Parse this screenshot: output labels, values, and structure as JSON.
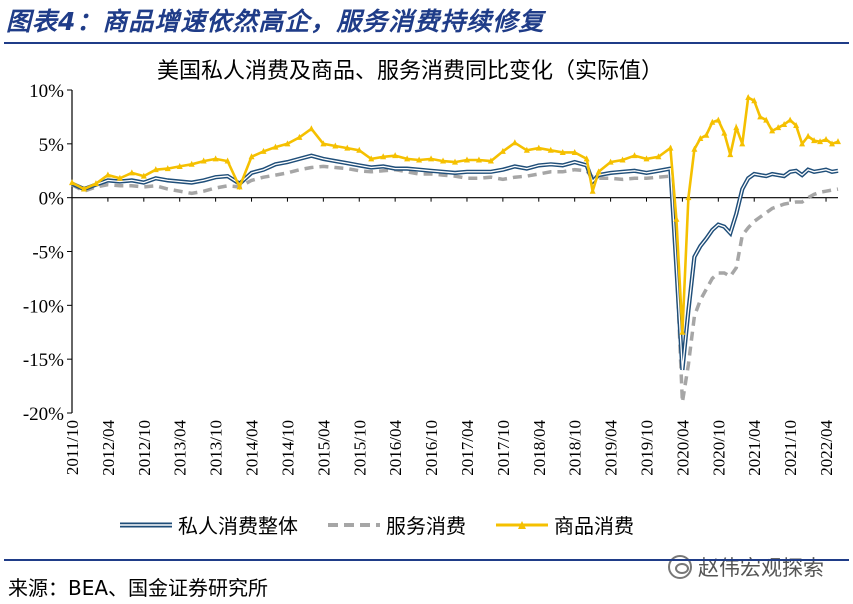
{
  "figure": {
    "caption": "图表4：商品增速依然高企，服务消费持续修复",
    "source": "来源：BEA、国金证券研究所",
    "watermark": "赵伟宏观探索"
  },
  "colors": {
    "title": "#1f3c88",
    "total": "#1f4e79",
    "services": "#a6a6a6",
    "goods": "#f5c000"
  },
  "chart_data": {
    "type": "line",
    "title": "美国私人消费及商品、服务消费同比变化（实际值）",
    "xlabel": "",
    "ylabel": "",
    "ylim": [
      -20,
      10
    ],
    "yticks": [
      "10%",
      "5%",
      "0%",
      "-5%",
      "-10%",
      "-15%",
      "-20%"
    ],
    "ytick_values": [
      10,
      5,
      0,
      -5,
      -10,
      -15,
      -20
    ],
    "xticks": [
      "2011/10",
      "2012/04",
      "2012/10",
      "2013/04",
      "2013/10",
      "2014/04",
      "2014/10",
      "2015/04",
      "2015/10",
      "2016/04",
      "2016/10",
      "2017/04",
      "2017/10",
      "2018/04",
      "2018/10",
      "2019/04",
      "2019/10",
      "2020/04",
      "2020/10",
      "2021/04",
      "2021/10",
      "2022/04"
    ],
    "x_start": "2011/10",
    "x_end": "2022/06",
    "grid": false,
    "legend_position": "bottom",
    "series": [
      {
        "name": "私人消费整体",
        "style": "double-line",
        "points": [
          [
            "2011/10",
            1.3
          ],
          [
            "2011/12",
            0.8
          ],
          [
            "2012/02",
            1.2
          ],
          [
            "2012/04",
            1.6
          ],
          [
            "2012/06",
            1.5
          ],
          [
            "2012/08",
            1.6
          ],
          [
            "2012/10",
            1.4
          ],
          [
            "2012/12",
            1.8
          ],
          [
            "2013/02",
            1.6
          ],
          [
            "2013/04",
            1.5
          ],
          [
            "2013/06",
            1.4
          ],
          [
            "2013/08",
            1.6
          ],
          [
            "2013/10",
            1.9
          ],
          [
            "2013/12",
            2.0
          ],
          [
            "2014/02",
            1.3
          ],
          [
            "2014/04",
            2.3
          ],
          [
            "2014/06",
            2.6
          ],
          [
            "2014/08",
            3.1
          ],
          [
            "2014/10",
            3.3
          ],
          [
            "2014/12",
            3.6
          ],
          [
            "2015/02",
            3.9
          ],
          [
            "2015/04",
            3.6
          ],
          [
            "2015/06",
            3.4
          ],
          [
            "2015/08",
            3.2
          ],
          [
            "2015/10",
            3.0
          ],
          [
            "2015/12",
            2.8
          ],
          [
            "2016/02",
            2.9
          ],
          [
            "2016/04",
            2.7
          ],
          [
            "2016/06",
            2.7
          ],
          [
            "2016/08",
            2.6
          ],
          [
            "2016/10",
            2.5
          ],
          [
            "2016/12",
            2.4
          ],
          [
            "2017/02",
            2.3
          ],
          [
            "2017/04",
            2.4
          ],
          [
            "2017/06",
            2.4
          ],
          [
            "2017/08",
            2.4
          ],
          [
            "2017/10",
            2.6
          ],
          [
            "2017/12",
            2.9
          ],
          [
            "2018/02",
            2.7
          ],
          [
            "2018/04",
            3.0
          ],
          [
            "2018/06",
            3.1
          ],
          [
            "2018/08",
            3.0
          ],
          [
            "2018/10",
            3.3
          ],
          [
            "2018/12",
            3.0
          ],
          [
            "2019/01",
            1.5
          ],
          [
            "2019/02",
            2.1
          ],
          [
            "2019/04",
            2.3
          ],
          [
            "2019/06",
            2.4
          ],
          [
            "2019/08",
            2.5
          ],
          [
            "2019/10",
            2.3
          ],
          [
            "2019/12",
            2.5
          ],
          [
            "2020/02",
            2.7
          ],
          [
            "2020/03",
            -6.5
          ],
          [
            "2020/04",
            -16.0
          ],
          [
            "2020/05",
            -10.5
          ],
          [
            "2020/06",
            -5.5
          ],
          [
            "2020/07",
            -4.5
          ],
          [
            "2020/08",
            -3.8
          ],
          [
            "2020/09",
            -3.0
          ],
          [
            "2020/10",
            -2.5
          ],
          [
            "2020/11",
            -2.7
          ],
          [
            "2020/12",
            -3.3
          ],
          [
            "2021/01",
            -1.5
          ],
          [
            "2021/02",
            0.8
          ],
          [
            "2021/03",
            1.8
          ],
          [
            "2021/04",
            2.2
          ],
          [
            "2021/05",
            2.1
          ],
          [
            "2021/06",
            2.0
          ],
          [
            "2021/07",
            2.2
          ],
          [
            "2021/08",
            2.1
          ],
          [
            "2021/09",
            2.0
          ],
          [
            "2021/10",
            2.4
          ],
          [
            "2021/11",
            2.5
          ],
          [
            "2021/12",
            2.1
          ],
          [
            "2022/01",
            2.6
          ],
          [
            "2022/02",
            2.4
          ],
          [
            "2022/03",
            2.5
          ],
          [
            "2022/04",
            2.6
          ],
          [
            "2022/05",
            2.4
          ],
          [
            "2022/06",
            2.5
          ]
        ]
      },
      {
        "name": "服务消费",
        "style": "dashed",
        "points": [
          [
            "2011/10",
            1.2
          ],
          [
            "2011/12",
            0.6
          ],
          [
            "2012/02",
            1.0
          ],
          [
            "2012/04",
            1.2
          ],
          [
            "2012/06",
            1.1
          ],
          [
            "2012/08",
            1.1
          ],
          [
            "2012/10",
            1.0
          ],
          [
            "2012/12",
            1.1
          ],
          [
            "2013/02",
            0.8
          ],
          [
            "2013/04",
            0.6
          ],
          [
            "2013/06",
            0.4
          ],
          [
            "2013/08",
            0.6
          ],
          [
            "2013/10",
            0.9
          ],
          [
            "2013/12",
            1.1
          ],
          [
            "2014/02",
            1.0
          ],
          [
            "2014/04",
            1.6
          ],
          [
            "2014/06",
            1.9
          ],
          [
            "2014/08",
            2.1
          ],
          [
            "2014/10",
            2.3
          ],
          [
            "2014/12",
            2.6
          ],
          [
            "2015/02",
            2.8
          ],
          [
            "2015/04",
            2.9
          ],
          [
            "2015/06",
            2.8
          ],
          [
            "2015/08",
            2.7
          ],
          [
            "2015/10",
            2.5
          ],
          [
            "2015/12",
            2.4
          ],
          [
            "2016/02",
            2.5
          ],
          [
            "2016/04",
            2.6
          ],
          [
            "2016/06",
            2.4
          ],
          [
            "2016/08",
            2.2
          ],
          [
            "2016/10",
            2.2
          ],
          [
            "2016/12",
            2.1
          ],
          [
            "2017/02",
            2.0
          ],
          [
            "2017/04",
            1.8
          ],
          [
            "2017/06",
            1.8
          ],
          [
            "2017/08",
            1.9
          ],
          [
            "2017/10",
            1.7
          ],
          [
            "2017/12",
            1.9
          ],
          [
            "2018/02",
            2.0
          ],
          [
            "2018/04",
            2.2
          ],
          [
            "2018/06",
            2.4
          ],
          [
            "2018/08",
            2.4
          ],
          [
            "2018/10",
            2.6
          ],
          [
            "2018/12",
            2.5
          ],
          [
            "2019/01",
            1.9
          ],
          [
            "2019/02",
            1.8
          ],
          [
            "2019/04",
            1.8
          ],
          [
            "2019/06",
            1.7
          ],
          [
            "2019/08",
            1.8
          ],
          [
            "2019/10",
            1.8
          ],
          [
            "2019/12",
            1.9
          ],
          [
            "2020/02",
            2.0
          ],
          [
            "2020/03",
            -6.0
          ],
          [
            "2020/04",
            -19.0
          ],
          [
            "2020/05",
            -15.5
          ],
          [
            "2020/06",
            -11.0
          ],
          [
            "2020/07",
            -9.5
          ],
          [
            "2020/08",
            -8.5
          ],
          [
            "2020/09",
            -7.5
          ],
          [
            "2020/10",
            -7.0
          ],
          [
            "2020/11",
            -7.0
          ],
          [
            "2020/12",
            -7.3
          ],
          [
            "2021/01",
            -6.5
          ],
          [
            "2021/02",
            -3.5
          ],
          [
            "2021/03",
            -2.8
          ],
          [
            "2021/04",
            -2.2
          ],
          [
            "2021/05",
            -1.8
          ],
          [
            "2021/06",
            -1.4
          ],
          [
            "2021/07",
            -1.0
          ],
          [
            "2021/08",
            -0.8
          ],
          [
            "2021/09",
            -0.6
          ],
          [
            "2021/10",
            -0.5
          ],
          [
            "2021/11",
            -0.4
          ],
          [
            "2021/12",
            -0.4
          ],
          [
            "2022/01",
            0.0
          ],
          [
            "2022/02",
            0.3
          ],
          [
            "2022/03",
            0.5
          ],
          [
            "2022/04",
            0.6
          ],
          [
            "2022/05",
            0.7
          ],
          [
            "2022/06",
            0.8
          ]
        ]
      },
      {
        "name": "商品消费",
        "style": "line-triangle",
        "points": [
          [
            "2011/10",
            1.4
          ],
          [
            "2011/12",
            0.8
          ],
          [
            "2012/02",
            1.3
          ],
          [
            "2012/04",
            2.1
          ],
          [
            "2012/06",
            1.8
          ],
          [
            "2012/08",
            2.3
          ],
          [
            "2012/10",
            2.0
          ],
          [
            "2012/12",
            2.6
          ],
          [
            "2013/02",
            2.7
          ],
          [
            "2013/04",
            2.9
          ],
          [
            "2013/06",
            3.1
          ],
          [
            "2013/08",
            3.4
          ],
          [
            "2013/10",
            3.6
          ],
          [
            "2013/12",
            3.4
          ],
          [
            "2014/02",
            1.0
          ],
          [
            "2014/04",
            3.8
          ],
          [
            "2014/06",
            4.3
          ],
          [
            "2014/08",
            4.7
          ],
          [
            "2014/10",
            5.0
          ],
          [
            "2014/12",
            5.6
          ],
          [
            "2015/02",
            6.4
          ],
          [
            "2015/04",
            5.0
          ],
          [
            "2015/06",
            4.8
          ],
          [
            "2015/08",
            4.6
          ],
          [
            "2015/10",
            4.4
          ],
          [
            "2015/12",
            3.6
          ],
          [
            "2016/02",
            3.8
          ],
          [
            "2016/04",
            3.9
          ],
          [
            "2016/06",
            3.6
          ],
          [
            "2016/08",
            3.5
          ],
          [
            "2016/10",
            3.6
          ],
          [
            "2016/12",
            3.4
          ],
          [
            "2017/02",
            3.3
          ],
          [
            "2017/04",
            3.5
          ],
          [
            "2017/06",
            3.5
          ],
          [
            "2017/08",
            3.4
          ],
          [
            "2017/10",
            4.3
          ],
          [
            "2017/12",
            5.1
          ],
          [
            "2018/02",
            4.4
          ],
          [
            "2018/04",
            4.6
          ],
          [
            "2018/06",
            4.4
          ],
          [
            "2018/08",
            4.2
          ],
          [
            "2018/10",
            4.2
          ],
          [
            "2018/12",
            3.6
          ],
          [
            "2019/01",
            0.6
          ],
          [
            "2019/02",
            2.4
          ],
          [
            "2019/04",
            3.3
          ],
          [
            "2019/06",
            3.5
          ],
          [
            "2019/08",
            3.9
          ],
          [
            "2019/10",
            3.6
          ],
          [
            "2019/12",
            3.8
          ],
          [
            "2020/02",
            4.6
          ],
          [
            "2020/03",
            -2.0
          ],
          [
            "2020/04",
            -12.5
          ],
          [
            "2020/05",
            0.0
          ],
          [
            "2020/06",
            4.5
          ],
          [
            "2020/07",
            5.5
          ],
          [
            "2020/08",
            5.8
          ],
          [
            "2020/09",
            7.0
          ],
          [
            "2020/10",
            7.2
          ],
          [
            "2020/11",
            6.0
          ],
          [
            "2020/12",
            4.0
          ],
          [
            "2021/01",
            6.5
          ],
          [
            "2021/02",
            5.0
          ],
          [
            "2021/03",
            9.3
          ],
          [
            "2021/04",
            9.0
          ],
          [
            "2021/05",
            7.5
          ],
          [
            "2021/06",
            7.2
          ],
          [
            "2021/07",
            6.2
          ],
          [
            "2021/08",
            6.5
          ],
          [
            "2021/09",
            6.8
          ],
          [
            "2021/10",
            7.2
          ],
          [
            "2021/11",
            6.7
          ],
          [
            "2021/12",
            5.0
          ],
          [
            "2022/01",
            5.7
          ],
          [
            "2022/02",
            5.3
          ],
          [
            "2022/03",
            5.2
          ],
          [
            "2022/04",
            5.4
          ],
          [
            "2022/05",
            5.0
          ],
          [
            "2022/06",
            5.2
          ]
        ]
      }
    ]
  }
}
